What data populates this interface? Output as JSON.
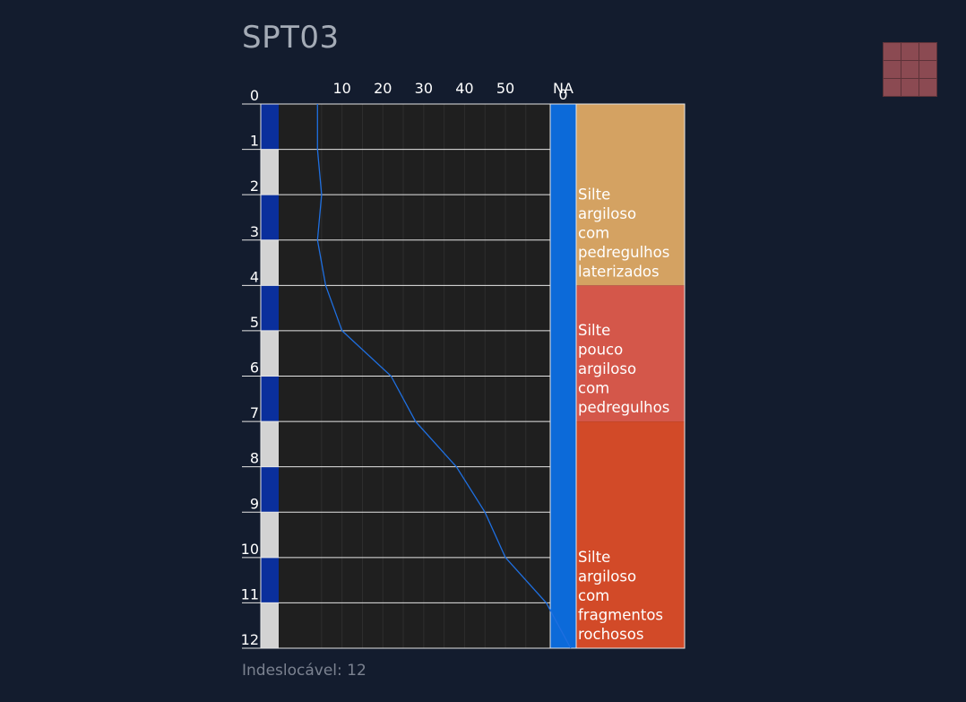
{
  "title": "SPT03",
  "footer": "Indeslocável: 12",
  "thumbnail_icon": "soil-texture-thumbnail-icon",
  "colors": {
    "background": "#131c2e",
    "plot_background": "#1f1f1f",
    "grid": "#2e2e2e",
    "sample_dark": "#0a2f9c",
    "sample_light": "#d3d3d3",
    "na_column": "#0c6ad9",
    "line": "#1f6fe0"
  },
  "chart_data": {
    "type": "line",
    "x_axis_label": "",
    "x_ticks": [
      10,
      20,
      30,
      40,
      50
    ],
    "xlim": [
      -5.5,
      50
    ],
    "na_label": "NA",
    "na_value_label": "0",
    "depth_ticks": [
      "0",
      "1",
      "2",
      "3",
      "4",
      "5",
      "6",
      "7",
      "8",
      "9",
      "10",
      "11",
      "12"
    ],
    "ylim": [
      0,
      12
    ],
    "series": [
      {
        "depth": [
          0,
          1,
          2,
          3,
          4,
          5,
          6,
          7,
          8,
          9,
          10,
          11,
          12
        ],
        "nspt": [
          4,
          4,
          5,
          4,
          6,
          10,
          22,
          28,
          38,
          45,
          50,
          60,
          66
        ]
      }
    ],
    "sampler_bands": [
      "dark",
      "light",
      "dark",
      "light",
      "dark",
      "light",
      "dark",
      "light",
      "dark",
      "light",
      "dark",
      "light"
    ],
    "layers": [
      {
        "from": 0,
        "to": 4,
        "description": [
          "Silte",
          "argiloso",
          "com",
          "pedregulhos",
          "laterizados"
        ],
        "color": "#d4a262"
      },
      {
        "from": 4,
        "to": 7,
        "description": [
          "Silte",
          "pouco",
          "argiloso",
          "com",
          "pedregulhos"
        ],
        "color": "#d4574a"
      },
      {
        "from": 7,
        "to": 12,
        "description": [
          "Silte",
          "argiloso",
          "com",
          "fragmentos",
          "rochosos"
        ],
        "color": "#d24a28"
      }
    ]
  }
}
